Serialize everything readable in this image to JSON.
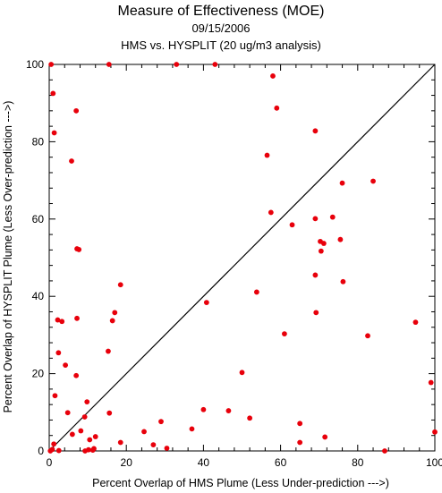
{
  "chart_data": {
    "type": "scatter",
    "title": "Measure of Effectiveness (MOE)",
    "subtitle_date": "09/15/2006",
    "subtitle": "HMS vs. HYSPLIT  (20 ug/m3 analysis)",
    "xlabel": "Percent Overlap of HMS Plume (Less Under-prediction --->)",
    "ylabel": "Percent Overlap of HYSPLIT Plume (Less Over-prediction --->)",
    "xlim": [
      0,
      100
    ],
    "ylim": [
      0,
      100
    ],
    "xticks": [
      0,
      20,
      40,
      60,
      80,
      100
    ],
    "yticks": [
      0,
      20,
      40,
      60,
      80,
      100
    ],
    "reference_line": [
      [
        0,
        0
      ],
      [
        100,
        100
      ]
    ],
    "grid": false,
    "marker_color": "#e8000b",
    "line_color": "#000000",
    "points": [
      [
        0.5,
        100
      ],
      [
        1.0,
        92.5
      ],
      [
        1.3,
        82.3
      ],
      [
        15.5,
        100
      ],
      [
        33,
        100
      ],
      [
        43,
        100
      ],
      [
        7,
        88
      ],
      [
        5.8,
        75
      ],
      [
        58,
        97
      ],
      [
        59,
        88.7
      ],
      [
        69,
        82.8
      ],
      [
        56.5,
        76.5
      ],
      [
        84,
        69.8
      ],
      [
        76,
        69.3
      ],
      [
        57.5,
        61.7
      ],
      [
        69,
        60.1
      ],
      [
        73.5,
        60.5
      ],
      [
        63,
        58.5
      ],
      [
        75.5,
        54.7
      ],
      [
        70.3,
        54.2
      ],
      [
        71.2,
        53.7
      ],
      [
        70.5,
        51.7
      ],
      [
        7.2,
        52.3
      ],
      [
        7.7,
        52.1
      ],
      [
        69,
        45.5
      ],
      [
        76.2,
        43.8
      ],
      [
        18.5,
        43
      ],
      [
        53.8,
        41.1
      ],
      [
        40.8,
        38.4
      ],
      [
        17,
        35.8
      ],
      [
        69.2,
        35.8
      ],
      [
        7.2,
        34.3
      ],
      [
        16.4,
        33.7
      ],
      [
        2.2,
        33.9
      ],
      [
        3.3,
        33.5
      ],
      [
        61,
        30.3
      ],
      [
        82.6,
        29.8
      ],
      [
        95,
        33.3
      ],
      [
        2.4,
        25.4
      ],
      [
        15.3,
        25.8
      ],
      [
        4.2,
        22.2
      ],
      [
        50,
        20.3
      ],
      [
        7,
        19.5
      ],
      [
        99,
        17.7
      ],
      [
        1.5,
        14.3
      ],
      [
        9.8,
        12.7
      ],
      [
        4.8,
        9.9
      ],
      [
        15.6,
        9.8
      ],
      [
        40,
        10.7
      ],
      [
        46.5,
        10.4
      ],
      [
        9.2,
        8.8
      ],
      [
        29,
        7.6
      ],
      [
        52,
        8.5
      ],
      [
        65,
        7.1
      ],
      [
        37,
        5.7
      ],
      [
        8.2,
        5.2
      ],
      [
        24.6,
        5
      ],
      [
        6,
        4.3
      ],
      [
        100,
        4.9
      ],
      [
        12,
        3.7
      ],
      [
        71.5,
        3.6
      ],
      [
        10.5,
        2.9
      ],
      [
        18.5,
        2.2
      ],
      [
        65,
        2.2
      ],
      [
        27,
        1.6
      ],
      [
        1.2,
        1.8
      ],
      [
        30.5,
        0.7
      ],
      [
        11.6,
        0.6
      ],
      [
        11.3,
        0.2
      ],
      [
        2.5,
        0.1
      ],
      [
        0.8,
        0.4
      ],
      [
        9.3,
        0
      ],
      [
        10.2,
        0.3
      ],
      [
        87,
        0
      ],
      [
        0.3,
        0
      ]
    ]
  }
}
